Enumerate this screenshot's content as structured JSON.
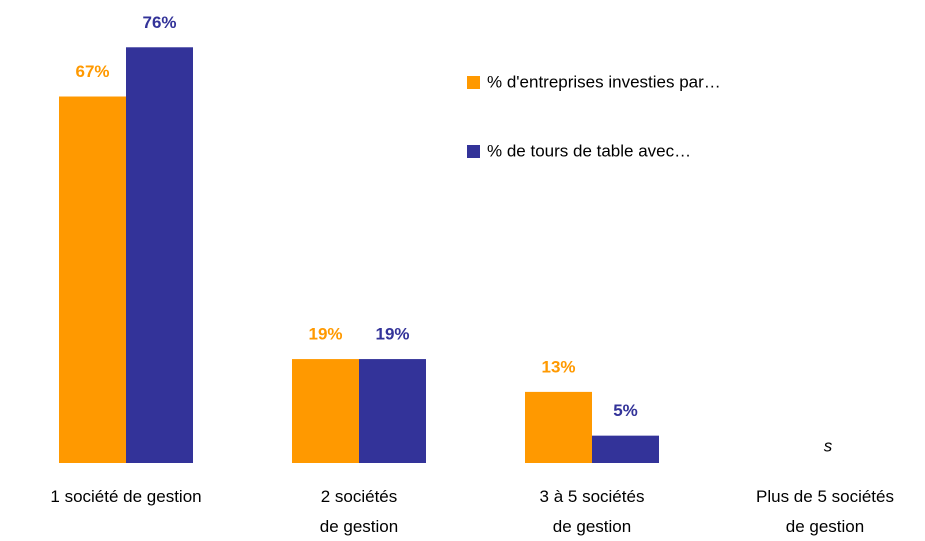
{
  "chart_data": {
    "type": "bar",
    "categories": [
      "1 société de gestion",
      "2 sociétés\nde gestion",
      "3 à 5 sociétés\nde gestion",
      "Plus de 5 sociétés\nde gestion"
    ],
    "series": [
      {
        "name": "% d'entreprises investies par…",
        "color": "#FF9900",
        "values": [
          67,
          19,
          13,
          null
        ],
        "value_labels": [
          "67%",
          "19%",
          "13%",
          null
        ]
      },
      {
        "name": "% de tours de table avec…",
        "color": "#333399",
        "values": [
          76,
          19,
          5,
          null
        ],
        "value_labels": [
          "76%",
          "19%",
          "5%",
          null
        ]
      }
    ],
    "annotation": "s",
    "legend": "top-right"
  }
}
